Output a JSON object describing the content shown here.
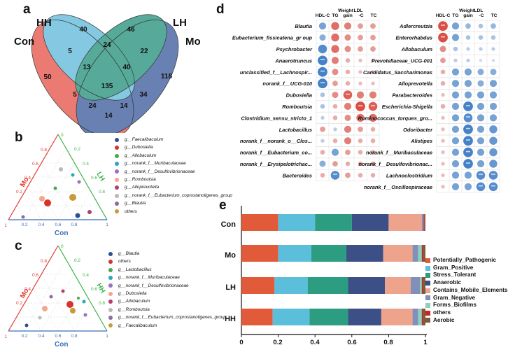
{
  "panels": {
    "a": "a",
    "b": "b",
    "c": "c",
    "d": "d",
    "e": "e"
  },
  "venn": {
    "sets": [
      {
        "name": "Con",
        "color": "#e8655a"
      },
      {
        "name": "HH",
        "color": "#6fbfdc"
      },
      {
        "name": "LH",
        "color": "#3a9c88"
      },
      {
        "name": "Mo",
        "color": "#4f6aa6"
      }
    ],
    "counts": {
      "con_only": "50",
      "hh_only": "40",
      "lh_only": "46",
      "mo_only": "118",
      "con_hh": "5",
      "hh_lh": "24",
      "lh_mo": "22",
      "con_mo": "14",
      "con_hh_lh": "13",
      "hh_lh_mo": "40",
      "con_hh_mo": "5",
      "con_lh_mo": "34",
      "all": "135",
      "con_lh": "24",
      "hh_mo": "14"
    }
  },
  "ternary_b": {
    "axes": {
      "left": "Mo",
      "right": "LH",
      "bottom": "Con"
    },
    "ticks": [
      "0.2",
      "0.4",
      "0.6",
      "0.8",
      "1",
      "0"
    ],
    "legend": [
      {
        "label": "g__Faecalibaculum",
        "color": "#2c4f8f"
      },
      {
        "label": "g__Dubosiella",
        "color": "#d7332b"
      },
      {
        "label": "g__Allobaculum",
        "color": "#49a84e"
      },
      {
        "label": "g__norank_f__Muribaculaceae",
        "color": "#29a9b6"
      },
      {
        "label": "g__norank_f__Desulfovibrionaceae",
        "color": "#9b6fc2"
      },
      {
        "label": "g__Romboutsia",
        "color": "#f5a58c"
      },
      {
        "label": "g__Alloprevotella",
        "color": "#b13e6e"
      },
      {
        "label": "g__norank_f__Eubacterium_coprostanoligenes_group",
        "color": "#b8b8b8"
      },
      {
        "label": "g__Blautia",
        "color": "#8a6d9c"
      },
      {
        "label": "others",
        "color": "#c89a3a"
      }
    ]
  },
  "ternary_c": {
    "axes": {
      "left": "Mo",
      "right": "HH",
      "bottom": "Con"
    },
    "ticks": [
      "0.2",
      "0.4",
      "0.6",
      "0.8",
      "1",
      "0"
    ],
    "legend": [
      {
        "label": "g__Blautia",
        "color": "#2c4f8f"
      },
      {
        "label": "others",
        "color": "#d7332b"
      },
      {
        "label": "g__Lactobacillus",
        "color": "#49a84e"
      },
      {
        "label": "g__norank_f__Muribaculaceae",
        "color": "#29a9b6"
      },
      {
        "label": "g__norank_f__Desulfovibrionaceae",
        "color": "#9b6fc2"
      },
      {
        "label": "g__Dubosiella",
        "color": "#f5a58c"
      },
      {
        "label": "g__Allobaculum",
        "color": "#b13e6e"
      },
      {
        "label": "g__Romboutsia",
        "color": "#b8b8b8"
      },
      {
        "label": "g__norank_f__Eubacterium_coprostanoligenes_group",
        "color": "#8a6d9c"
      },
      {
        "label": "g__Faecalibaculum",
        "color": "#c89a3a"
      }
    ]
  },
  "heatmap": {
    "columns": [
      "HDL-C",
      "TG",
      "Weight gain",
      "LDL -C",
      "TC"
    ],
    "column_labels": {
      "hdl": "HDL-C",
      "tg": "TG",
      "weight": "Weight",
      "gain": "gain",
      "ldl": "LDL",
      "c": "-C",
      "tc": "TC"
    },
    "stars": "***",
    "left": [
      {
        "taxon": "Blautia",
        "r": [
          -0.6,
          0.7,
          0.6,
          0.4,
          0.4
        ],
        "s": [
          0,
          0,
          0,
          0,
          0
        ]
      },
      {
        "taxon": "Eubacterium_fissicatena_gr oup",
        "r": [
          -0.5,
          0.7,
          0.5,
          0.4,
          0.4
        ],
        "s": [
          0,
          0,
          0,
          0,
          0
        ]
      },
      {
        "taxon": "Psychrobacter",
        "r": [
          -0.8,
          0.7,
          0.5,
          0.4,
          0.4
        ],
        "s": [
          0,
          0,
          0,
          0,
          0
        ]
      },
      {
        "taxon": "Anaerotruncus",
        "r": [
          -0.9,
          0.6,
          0.3,
          0.2,
          0.2
        ],
        "s": [
          1,
          0,
          0,
          0,
          0
        ]
      },
      {
        "taxon": "unclassified_f__Lachnospir...",
        "r": [
          -0.9,
          0.5,
          0.3,
          0.2,
          0.2
        ],
        "s": [
          1,
          0,
          0,
          0,
          0
        ]
      },
      {
        "taxon": "norank_f__UCG-010",
        "r": [
          -0.9,
          0.4,
          0.3,
          0.2,
          0.2
        ],
        "s": [
          1,
          0,
          0,
          0,
          0
        ]
      },
      {
        "taxon": "Dubosiella",
        "r": [
          -0.3,
          0.5,
          0.8,
          0.6,
          0.6
        ],
        "s": [
          0,
          0,
          1,
          0,
          0
        ]
      },
      {
        "taxon": "Romboutsia",
        "r": [
          -0.3,
          0.3,
          0.6,
          0.9,
          0.8
        ],
        "s": [
          0,
          0,
          0,
          1,
          1
        ]
      },
      {
        "taxon": "Clostridium_sensu_stricto_1",
        "r": [
          -0.2,
          0.3,
          0.5,
          0.7,
          0.7
        ],
        "s": [
          0,
          0,
          0,
          0,
          0
        ]
      },
      {
        "taxon": "Lactobacillus",
        "r": [
          0.4,
          -0.2,
          0.6,
          0.4,
          0.3
        ],
        "s": [
          0,
          0,
          0,
          0,
          0
        ]
      },
      {
        "taxon": "norank_f__norank_o__Clos...",
        "r": [
          -0.2,
          0.3,
          0.6,
          0.3,
          0.3
        ],
        "s": [
          0,
          0,
          0,
          0,
          0
        ]
      },
      {
        "taxon": "norank_f__Eubacterium_co...",
        "r": [
          0.3,
          -0.6,
          0.4,
          0.3,
          0.3
        ],
        "s": [
          0,
          0,
          0,
          0,
          0
        ]
      },
      {
        "taxon": "norank_f__Erysipelotrichac...",
        "r": [
          -0.5,
          0.4,
          0.3,
          0.3,
          0.3
        ],
        "s": [
          0,
          0,
          0,
          0,
          0
        ]
      },
      {
        "taxon": "Bacteroides",
        "r": [
          0.3,
          -0.8,
          0.4,
          0.3,
          0.3
        ],
        "s": [
          0,
          1,
          0,
          0,
          0
        ]
      }
    ],
    "right": [
      {
        "taxon": "Adlercreutzia",
        "r": [
          0.9,
          -0.6,
          -0.4,
          -0.3,
          -0.4
        ],
        "s": [
          1,
          0,
          0,
          0,
          0
        ]
      },
      {
        "taxon": "Enterorhabdus",
        "r": [
          0.9,
          -0.6,
          -0.3,
          -0.3,
          -0.3
        ],
        "s": [
          1,
          0,
          0,
          0,
          0
        ]
      },
      {
        "taxon": "Allobaculum",
        "r": [
          0.5,
          -0.3,
          -0.2,
          -0.2,
          -0.2
        ],
        "s": [
          0,
          0,
          0,
          0,
          0
        ]
      },
      {
        "taxon": "Prevotellaceae_UCG-001",
        "r": [
          0.4,
          -0.2,
          -0.2,
          -0.1,
          -0.1
        ],
        "s": [
          0,
          0,
          0,
          0,
          0
        ]
      },
      {
        "taxon": "Candidatus_Saccharimonas",
        "r": [
          0.3,
          -0.6,
          -0.6,
          -0.5,
          -0.5
        ],
        "s": [
          0,
          0,
          0,
          0,
          0
        ]
      },
      {
        "taxon": "Alloprevotella",
        "r": [
          0.3,
          -0.6,
          -0.6,
          -0.5,
          -0.6
        ],
        "s": [
          0,
          0,
          0,
          0,
          0
        ]
      },
      {
        "taxon": "Parabacteroides",
        "r": [
          0.2,
          -0.6,
          -0.6,
          -0.6,
          -0.6
        ],
        "s": [
          0,
          0,
          0,
          0,
          0
        ]
      },
      {
        "taxon": "Escherichia-Shigella",
        "r": [
          0.3,
          -0.6,
          -0.9,
          -0.6,
          -0.6
        ],
        "s": [
          0,
          0,
          1,
          0,
          0
        ]
      },
      {
        "taxon": "Ruminococcus_torques_gro...",
        "r": [
          0.2,
          -0.6,
          -0.8,
          -0.6,
          -0.6
        ],
        "s": [
          0,
          0,
          1,
          0,
          0
        ]
      },
      {
        "taxon": "Odoribacter",
        "r": [
          0.2,
          -0.6,
          -0.9,
          -0.6,
          -0.7
        ],
        "s": [
          0,
          0,
          1,
          0,
          0
        ]
      },
      {
        "taxon": "Alistipes",
        "r": [
          0.2,
          -0.6,
          -0.9,
          -0.6,
          -0.7
        ],
        "s": [
          0,
          0,
          1,
          0,
          0
        ]
      },
      {
        "taxon": "norank_f__Muribaculaceae",
        "r": [
          0.2,
          -0.6,
          -0.9,
          -0.6,
          -0.7
        ],
        "s": [
          0,
          0,
          1,
          0,
          0
        ]
      },
      {
        "taxon": "norank_f__Desulfovibrionac...",
        "r": [
          0.2,
          -0.6,
          -0.9,
          -0.6,
          -0.7
        ],
        "s": [
          0,
          0,
          1,
          0,
          0
        ]
      },
      {
        "taxon": "Lachnoclostridium",
        "r": [
          0.2,
          -0.6,
          -0.6,
          -0.8,
          -0.8
        ],
        "s": [
          0,
          0,
          0,
          1,
          1
        ]
      },
      {
        "taxon": "norank_f__Oscillospiraceae",
        "r": [
          0.2,
          -0.6,
          -0.6,
          -0.8,
          -0.8
        ],
        "s": [
          0,
          0,
          0,
          1,
          1
        ]
      }
    ]
  },
  "chart_data": {
    "type": "bar",
    "orientation": "horizontal",
    "stacked": true,
    "categories": [
      "Con",
      "Mo",
      "LH",
      "HH"
    ],
    "xlim": [
      0,
      1
    ],
    "xticks": [
      "0",
      "0.2",
      "0.4",
      "0.6",
      "0.8",
      "1"
    ],
    "series": [
      {
        "name": "Potentially_Pathogenic",
        "color": "#e15a3a",
        "values": [
          0.2,
          0.2,
          0.18,
          0.17
        ]
      },
      {
        "name": "Gram_Positive",
        "color": "#5bbfdc",
        "values": [
          0.2,
          0.18,
          0.18,
          0.2
        ]
      },
      {
        "name": "Stress_Tolerant",
        "color": "#2c9d80",
        "values": [
          0.2,
          0.19,
          0.22,
          0.21
        ]
      },
      {
        "name": "Anaerobic",
        "color": "#3c4f86",
        "values": [
          0.2,
          0.2,
          0.2,
          0.18
        ]
      },
      {
        "name": "Contains_Mobile_Elements",
        "color": "#eea38c",
        "values": [
          0.18,
          0.16,
          0.14,
          0.17
        ]
      },
      {
        "name": "Gram_Negative",
        "color": "#8090b8",
        "values": [
          0.01,
          0.03,
          0.05,
          0.03
        ]
      },
      {
        "name": "Forms_Biofilms",
        "color": "#8ecfbe",
        "values": [
          0.0,
          0.02,
          0.01,
          0.02
        ]
      },
      {
        "name": "others",
        "color": "#cc2222",
        "values": [
          0.005,
          0.005,
          0.005,
          0.005
        ]
      },
      {
        "name": "Aerobic",
        "color": "#7b5a3e",
        "values": [
          0.005,
          0.015,
          0.015,
          0.015
        ]
      }
    ]
  }
}
